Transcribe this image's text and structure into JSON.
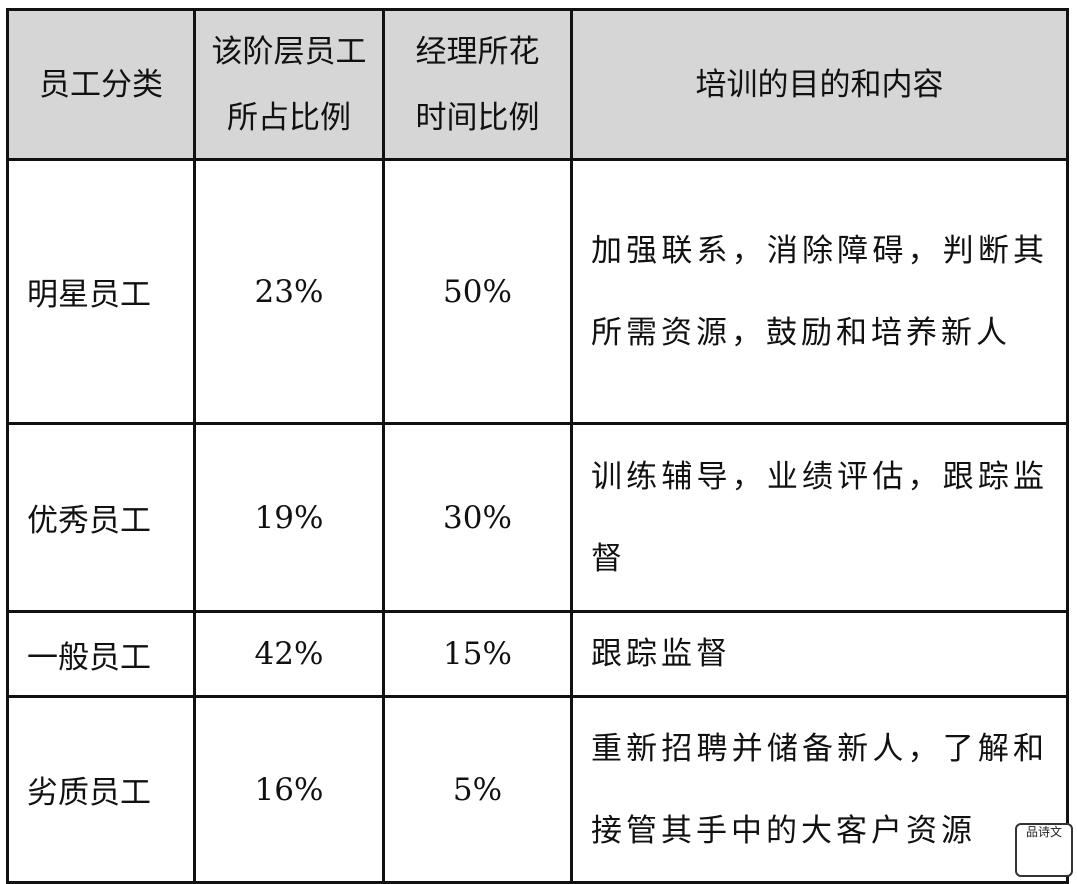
{
  "table": {
    "headers": [
      [
        "员工分类"
      ],
      [
        "该阶层员工",
        "所占比例"
      ],
      [
        "经理所花",
        "时间比例"
      ],
      [
        "培训的目的和内容"
      ]
    ],
    "rows": [
      {
        "category": "明星员工",
        "share": "23%",
        "time": "50%",
        "content": "加强联系，消除障碍，判断其所需资源，鼓励和培养新人"
      },
      {
        "category": "优秀员工",
        "share": "19%",
        "time": "30%",
        "content": "训练辅导，业绩评估，跟踪监督"
      },
      {
        "category": "一般员工",
        "share": "42%",
        "time": "15%",
        "content": "跟踪监督"
      },
      {
        "category": "劣质员工",
        "share": "16%",
        "time": "5%",
        "content": "重新招聘并储备新人，了解和接管其手中的大客户资源"
      }
    ]
  },
  "watermark": {
    "text": "品诗文"
  }
}
